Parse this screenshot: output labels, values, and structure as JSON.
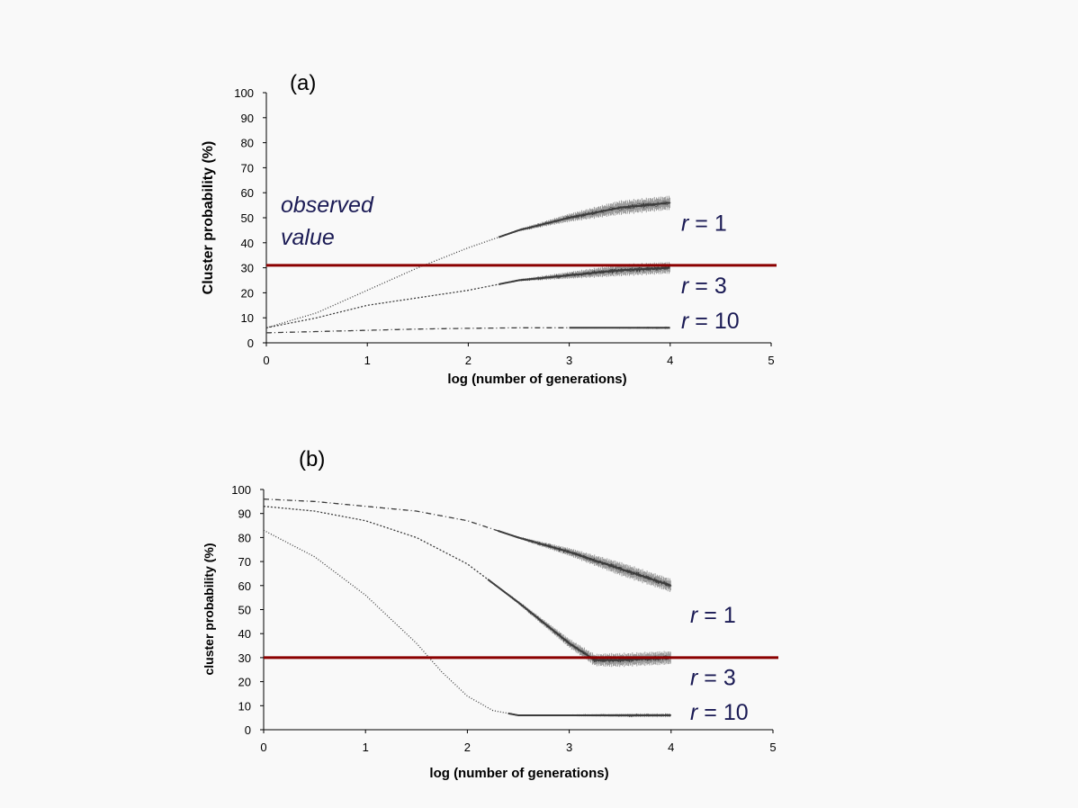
{
  "colors": {
    "background": "#f9f9f9",
    "series": "#3c3c3c",
    "noise": "#9a9a9a",
    "observed_line": "#8b0000",
    "label_text": "#1b1b55"
  },
  "chart_data": [
    {
      "type": "line",
      "panel_label": "(a)",
      "xlabel": "log (number of generations)",
      "ylabel": "Cluster probability (%)",
      "xlim": [
        0,
        5
      ],
      "ylim": [
        0,
        100
      ],
      "xticks": [
        0,
        1,
        2,
        3,
        4,
        5
      ],
      "yticks": [
        0,
        10,
        20,
        30,
        40,
        50,
        60,
        70,
        80,
        90,
        100
      ],
      "grid": false,
      "observed_value": 31,
      "annotation": {
        "line1": "observed",
        "line2": "value"
      },
      "series": [
        {
          "label_italic": "r",
          "label_rest": " = 1",
          "label_y": 48,
          "dash": "1,2",
          "noise_start": 2.3,
          "noise_amp": 3,
          "x": [
            0,
            0.5,
            1,
            1.5,
            2,
            2.5,
            3,
            3.5,
            4
          ],
          "y": [
            6,
            12,
            21,
            30,
            38,
            45,
            50,
            54,
            56
          ]
        },
        {
          "label_italic": "r",
          "label_rest": " = 3",
          "label_y": 23,
          "dash": "2,2",
          "noise_start": 2.3,
          "noise_amp": 2.5,
          "x": [
            0,
            0.5,
            1,
            1.5,
            2,
            2.5,
            3,
            3.5,
            4
          ],
          "y": [
            6,
            10,
            15,
            18,
            21,
            25,
            27,
            29,
            30
          ]
        },
        {
          "label_italic": "r",
          "label_rest": " = 10",
          "label_y": 9,
          "dash": "6,3,1,3",
          "noise_start": 3,
          "noise_amp": 0.6,
          "x": [
            0,
            0.5,
            1,
            1.5,
            2,
            2.5,
            3,
            3.5,
            4
          ],
          "y": [
            4,
            4.5,
            5,
            5.5,
            5.8,
            6,
            6,
            6,
            6
          ]
        }
      ]
    },
    {
      "type": "line",
      "panel_label": "(b)",
      "xlabel": "log (number of generations)",
      "ylabel": "cluster probability (%)",
      "xlim": [
        0,
        5
      ],
      "ylim": [
        0,
        100
      ],
      "xticks": [
        0,
        1,
        2,
        3,
        4,
        5
      ],
      "yticks": [
        0,
        10,
        20,
        30,
        40,
        50,
        60,
        70,
        80,
        90,
        100
      ],
      "grid": false,
      "observed_value": 30,
      "series": [
        {
          "label_italic": "r",
          "label_rest": " = 1",
          "label_y": 48,
          "dash": "6,3,1,3",
          "noise_start": 2.3,
          "noise_amp": 3,
          "x": [
            0,
            0.5,
            1,
            1.5,
            2,
            2.5,
            3,
            3.5,
            4
          ],
          "y": [
            96,
            95,
            93,
            91,
            87,
            80,
            74,
            67,
            60
          ]
        },
        {
          "label_italic": "r",
          "label_rest": " = 3",
          "label_y": 22,
          "dash": "2,2",
          "noise_start": 2.2,
          "noise_amp": 3,
          "x": [
            0,
            0.5,
            1,
            1.5,
            2,
            2.5,
            3,
            3.25,
            3.5,
            4
          ],
          "y": [
            93,
            91,
            87,
            80,
            69,
            53,
            36,
            29,
            29,
            30
          ]
        },
        {
          "label_italic": "r",
          "label_rest": " = 10",
          "label_y": 7.5,
          "dash": "1,2",
          "noise_start": 2.4,
          "noise_amp": 0.8,
          "x": [
            0,
            0.5,
            1,
            1.5,
            1.75,
            2,
            2.25,
            2.5,
            3,
            4
          ],
          "y": [
            83,
            72,
            56,
            36,
            24,
            14,
            8,
            6,
            6,
            6
          ]
        }
      ]
    }
  ]
}
